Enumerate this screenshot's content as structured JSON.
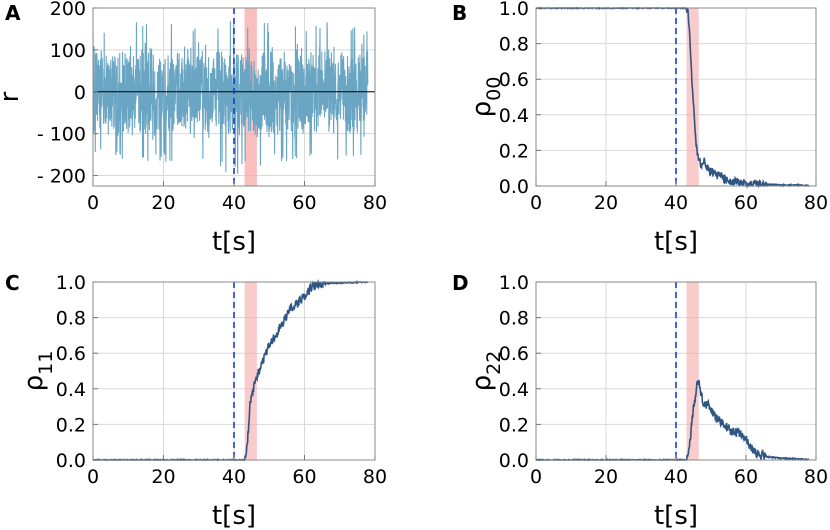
{
  "colors": {
    "signal": "#6aa6c3",
    "line": "#2f5582",
    "marker_line": "#1a3cc6",
    "band": "#f7a8a8"
  },
  "shared": {
    "xlabel": "t[s]",
    "xlim": [
      0,
      80
    ],
    "xticks": [
      "0",
      "20",
      "40",
      "60",
      "80"
    ],
    "xtick_values": [
      0,
      20,
      40,
      60,
      80
    ],
    "marker_x": 40,
    "band_x": [
      43,
      46.5
    ]
  },
  "chart_data": [
    {
      "panel": "A",
      "type": "line",
      "title": "",
      "ylabel_main": "r",
      "ylabel_sub": "",
      "ylim": [
        -225,
        200
      ],
      "yticks": [
        "200",
        "100",
        "0",
        "- 100",
        "- 200"
      ],
      "ytick_values": [
        200,
        100,
        0,
        -100,
        -200
      ],
      "zero_line": true,
      "series": [
        {
          "name": "r",
          "envelope_x": [
            0,
            10,
            20,
            30,
            40,
            50,
            60,
            70,
            78
          ],
          "envelope_upper": [
            160,
            165,
            170,
            160,
            175,
            165,
            170,
            165,
            160
          ],
          "envelope_lower": [
            -160,
            -165,
            -170,
            -165,
            -205,
            -170,
            -165,
            -165,
            -160
          ],
          "typical_amplitude": 120
        }
      ]
    },
    {
      "panel": "B",
      "type": "line",
      "title": "",
      "ylabel_main": "ρ",
      "ylabel_sub": "00",
      "ylim": [
        0,
        1
      ],
      "yticks": [
        "1.0",
        "0.8",
        "0.6",
        "0.4",
        "0.2",
        "0.0"
      ],
      "ytick_values": [
        1,
        0.8,
        0.6,
        0.4,
        0.2,
        0
      ],
      "series": [
        {
          "name": "rho_00",
          "x": [
            0,
            40,
            43,
            43.5,
            44,
            44.5,
            45,
            45.5,
            46,
            46.5,
            47,
            48,
            49,
            50,
            52,
            55,
            58,
            60,
            65,
            70,
            75,
            78
          ],
          "y": [
            1,
            1,
            1,
            0.98,
            0.8,
            0.6,
            0.45,
            0.3,
            0.2,
            0.15,
            0.12,
            0.14,
            0.1,
            0.08,
            0.06,
            0.03,
            0.02,
            0.01,
            0.01,
            0.005,
            0.005,
            0.002
          ]
        }
      ]
    },
    {
      "panel": "C",
      "type": "line",
      "title": "",
      "ylabel_main": "ρ",
      "ylabel_sub": "11",
      "ylim": [
        0,
        1
      ],
      "yticks": [
        "1.0",
        "0.8",
        "0.6",
        "0.4",
        "0.2",
        "0.0"
      ],
      "ytick_values": [
        1,
        0.8,
        0.6,
        0.4,
        0.2,
        0
      ],
      "series": [
        {
          "name": "rho_11",
          "x": [
            0,
            40,
            43,
            43.5,
            44,
            44.5,
            45,
            45.5,
            46,
            47,
            48,
            49,
            50,
            52,
            54,
            56,
            58,
            60,
            62,
            65,
            70,
            75,
            78
          ],
          "y": [
            0,
            0,
            0,
            0.02,
            0.15,
            0.3,
            0.35,
            0.4,
            0.45,
            0.5,
            0.55,
            0.6,
            0.65,
            0.7,
            0.78,
            0.85,
            0.88,
            0.92,
            0.97,
            0.99,
            0.995,
            0.998,
            1
          ]
        }
      ]
    },
    {
      "panel": "D",
      "type": "line",
      "title": "",
      "ylabel_main": "ρ",
      "ylabel_sub": "22",
      "ylim": [
        0,
        1
      ],
      "yticks": [
        "1.0",
        "0.8",
        "0.6",
        "0.4",
        "0.2",
        "0.0"
      ],
      "ytick_values": [
        1,
        0.8,
        0.6,
        0.4,
        0.2,
        0
      ],
      "series": [
        {
          "name": "rho_22",
          "x": [
            0,
            40,
            43,
            43.5,
            44,
            44.5,
            45,
            45.5,
            46,
            46.5,
            47,
            48,
            49,
            50,
            51,
            52,
            54,
            56,
            58,
            60,
            62,
            65,
            70,
            75,
            78
          ],
          "y": [
            0,
            0,
            0,
            0.02,
            0.1,
            0.2,
            0.3,
            0.35,
            0.42,
            0.45,
            0.38,
            0.3,
            0.32,
            0.28,
            0.25,
            0.22,
            0.2,
            0.16,
            0.15,
            0.12,
            0.05,
            0.02,
            0.01,
            0.005,
            0.002
          ]
        }
      ]
    }
  ]
}
